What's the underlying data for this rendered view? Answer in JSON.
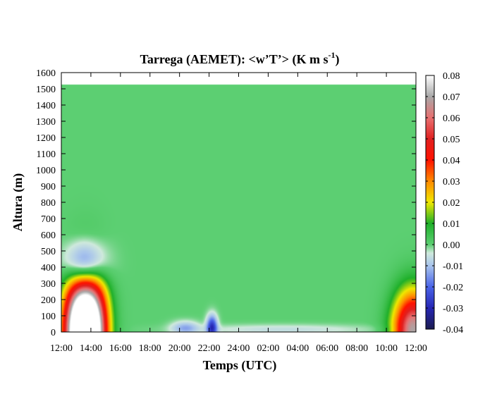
{
  "chart_data": {
    "type": "heatmap",
    "title": "Tarrega (AEMET): <w’T’> (K m s",
    "title_superscript": "-1",
    "title_close": ")",
    "xlabel": "Temps (UTC)",
    "ylabel": "Altura (m)",
    "x_ticks": [
      "12:00",
      "14:00",
      "16:00",
      "18:00",
      "20:00",
      "22:00",
      "24:00",
      "02:00",
      "04:00",
      "06:00",
      "08:00",
      "10:00",
      "12:00"
    ],
    "x_range_hours": [
      0,
      24
    ],
    "y_ticks": [
      0,
      100,
      200,
      300,
      400,
      500,
      600,
      700,
      800,
      900,
      1000,
      1100,
      1200,
      1300,
      1400,
      1500,
      1600
    ],
    "y_range": [
      0,
      1600
    ],
    "data_top_m": 1525,
    "colorbar": {
      "range": [
        -0.04,
        0.08
      ],
      "ticks": [
        "0.08",
        "0.07",
        "0.06",
        "0.05",
        "0.04",
        "0.03",
        "0.02",
        "0.01",
        "0.00",
        "-0.01",
        "-0.02",
        "-0.03",
        "-0.04"
      ],
      "stops": [
        {
          "v": -0.04,
          "color": "#1c1c50"
        },
        {
          "v": -0.03,
          "color": "#2626b4"
        },
        {
          "v": -0.02,
          "color": "#4a64e8"
        },
        {
          "v": -0.01,
          "color": "#a8c4ec"
        },
        {
          "v": -0.004,
          "color": "#cfe9dc"
        },
        {
          "v": 0.0,
          "color": "#5ccf72"
        },
        {
          "v": 0.01,
          "color": "#1fb02a"
        },
        {
          "v": 0.02,
          "color": "#f0e800"
        },
        {
          "v": 0.03,
          "color": "#ff8a00"
        },
        {
          "v": 0.04,
          "color": "#ff1200"
        },
        {
          "v": 0.05,
          "color": "#e02020"
        },
        {
          "v": 0.06,
          "color": "#e87070"
        },
        {
          "v": 0.07,
          "color": "#a8a8a8"
        },
        {
          "v": 0.08,
          "color": "#ffffff"
        }
      ]
    },
    "background_value": 0.0,
    "features": [
      {
        "hour": 1.1,
        "height_m": 0,
        "amplitude": 0.085,
        "width_h": 1.05,
        "depth_m": 330
      },
      {
        "hour": 2.1,
        "height_m": 0,
        "amplitude": 0.09,
        "width_h": 1.05,
        "depth_m": 330
      },
      {
        "hour": 1.6,
        "height_m": 410,
        "amplitude": -0.035,
        "width_h": 1.3,
        "depth_m": 140
      },
      {
        "hour": 23.8,
        "height_m": 0,
        "amplitude": 0.07,
        "width_h": 1.3,
        "depth_m": 240
      },
      {
        "hour": 10.2,
        "height_m": 30,
        "amplitude": -0.028,
        "width_h": 0.35,
        "depth_m": 70
      },
      {
        "hour": 8.4,
        "height_m": 25,
        "amplitude": -0.012,
        "width_h": 0.9,
        "depth_m": 40
      },
      {
        "hour": 15,
        "height_m": 15,
        "amplitude": -0.006,
        "width_h": 6,
        "depth_m": 30
      }
    ]
  }
}
